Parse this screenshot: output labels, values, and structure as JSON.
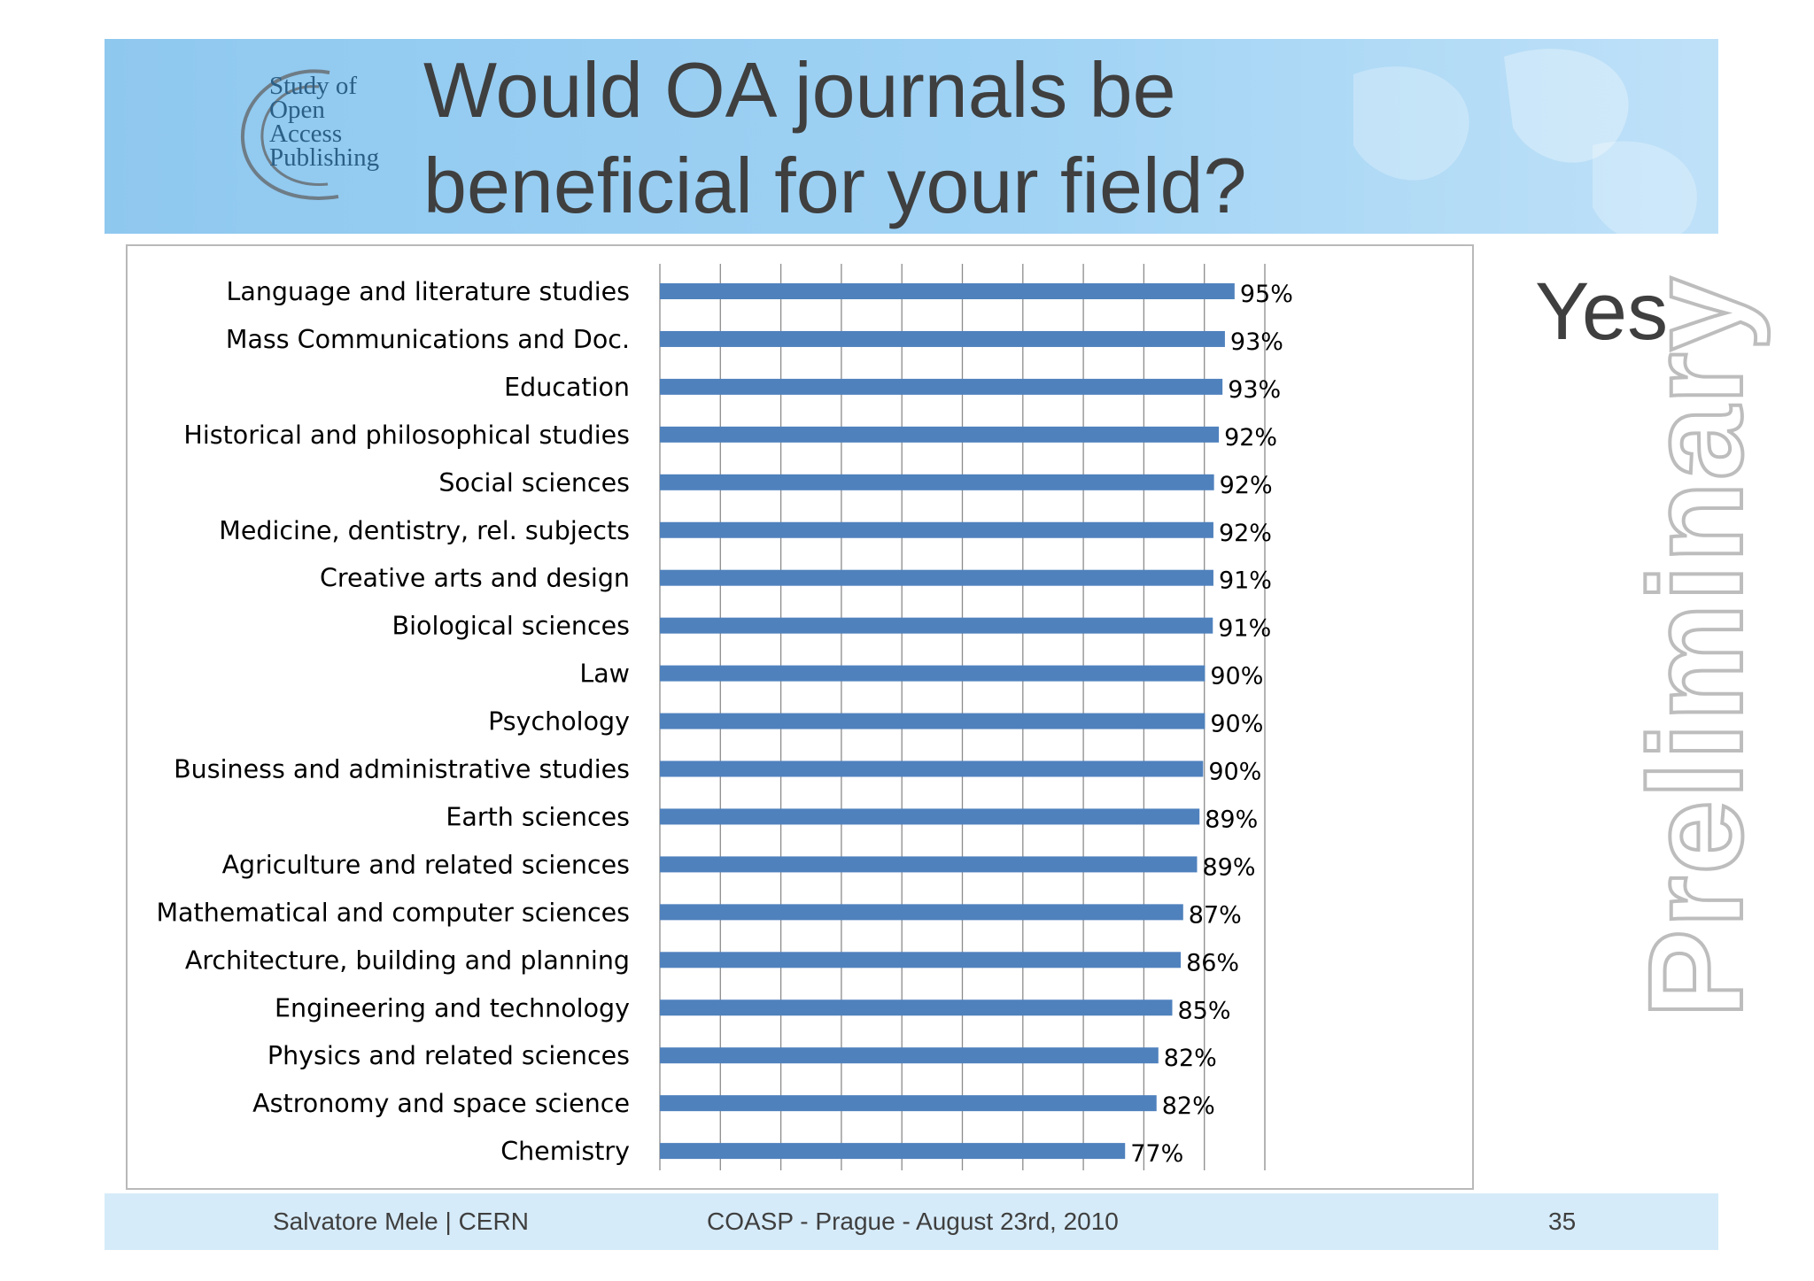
{
  "header": {
    "logo_lines": "Study of\nOpen\nAccess\nPublishing",
    "title": "Would OA journals be\nbeneficial for your field?"
  },
  "side_label": "Yes",
  "watermark": "Preliminary",
  "footer": {
    "left": "Salvatore Mele | CERN",
    "center": "COASP - Prague - August 23rd, 2010",
    "page": "35"
  },
  "colors": {
    "bar": "#4f81bd",
    "header_bg": "#9fd2f4",
    "footer_bg": "#d6ebf9",
    "title_text": "#3f3f3f"
  },
  "chart_data": {
    "type": "bar",
    "orientation": "horizontal",
    "categories": [
      "Language and literature studies",
      "Mass Communications and Doc.",
      "Education",
      "Historical and philosophical studies",
      "Social sciences",
      "Medicine, dentistry, rel. subjects",
      "Creative arts and design",
      "Biological sciences",
      "Law",
      "Psychology",
      "Business and administrative studies",
      "Earth sciences",
      "Agriculture and related sciences",
      "Mathematical and computer sciences",
      "Architecture, building and planning",
      "Engineering and technology",
      "Physics and related sciences",
      "Astronomy and space science",
      "Chemistry"
    ],
    "values": [
      95,
      93.4,
      93,
      92.4,
      91.6,
      91.5,
      91.5,
      91.4,
      90.1,
      90.1,
      89.8,
      89.2,
      88.8,
      86.5,
      86.1,
      84.7,
      82.4,
      82.1,
      76.9
    ],
    "data_labels": [
      "95%",
      "93%",
      "93%",
      "92%",
      "92%",
      "92%",
      "91%",
      "91%",
      "90%",
      "90%",
      "90%",
      "89%",
      "89%",
      "87%",
      "86%",
      "85%",
      "82%",
      "82%",
      "77%"
    ],
    "xlim": [
      0,
      100
    ],
    "grid": true,
    "legend": "none"
  }
}
